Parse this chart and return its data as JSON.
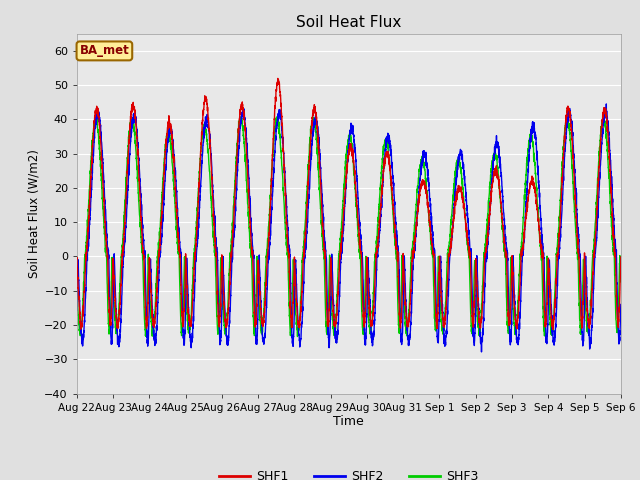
{
  "title": "Soil Heat Flux",
  "ylabel": "Soil Heat Flux (W/m2)",
  "xlabel": "Time",
  "ylim": [
    -40,
    65
  ],
  "yticks": [
    -40,
    -30,
    -20,
    -10,
    0,
    10,
    20,
    30,
    40,
    50,
    60
  ],
  "background_color": "#e0e0e0",
  "plot_bg_color": "#e8e8e8",
  "grid_color": "#ffffff",
  "colors": {
    "SHF1": "#dd0000",
    "SHF2": "#0000ee",
    "SHF3": "#00cc00"
  },
  "annotation_text": "BA_met",
  "annotation_box_color": "#ffee99",
  "annotation_box_edge": "#996600",
  "x_labels": [
    "Aug 22",
    "Aug 23",
    "Aug 24",
    "Aug 25",
    "Aug 26",
    "Aug 27",
    "Aug 28",
    "Aug 29",
    "Aug 30",
    "Aug 31",
    "Sep 1",
    "Sep 2",
    "Sep 3",
    "Sep 4",
    "Sep 5",
    "Sep 6"
  ],
  "num_days": 15,
  "ppd": 288,
  "peak_amplitudes_shf1": [
    43,
    44,
    39,
    46,
    44,
    51,
    43,
    32,
    30,
    22,
    20,
    25,
    22,
    43,
    43
  ],
  "peak_amplitudes_shf2": [
    42,
    41,
    37,
    40,
    42,
    42,
    40,
    37,
    35,
    30,
    30,
    33,
    38,
    42,
    42
  ],
  "peak_amplitudes_shf3": [
    40,
    40,
    36,
    38,
    40,
    40,
    40,
    35,
    34,
    28,
    28,
    30,
    35,
    40,
    40
  ],
  "night_min_shf1": -20,
  "night_min_shf2": -25,
  "night_min_shf3": -22
}
